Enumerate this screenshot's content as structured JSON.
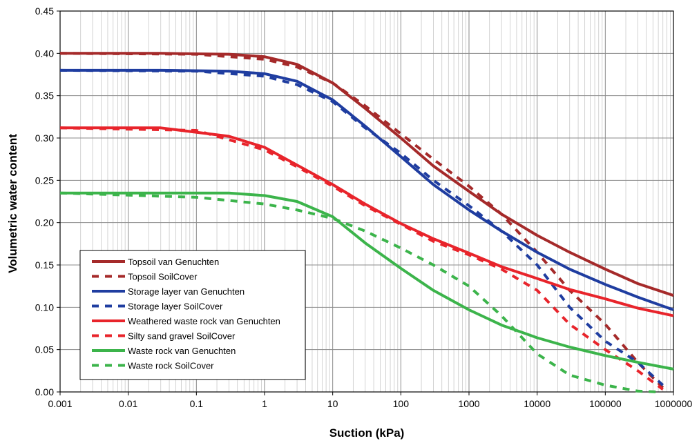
{
  "chart_data": {
    "type": "line",
    "title": "",
    "xlabel": "Suction (kPa)",
    "ylabel": "Volumetric water content",
    "x_scale": "log",
    "xlim": [
      0.001,
      1000000
    ],
    "ylim": [
      0,
      0.45
    ],
    "x_ticks": [
      "0.001",
      "0.01",
      "0.1",
      "1",
      "10",
      "100",
      "1000",
      "10000",
      "100000",
      "1000000"
    ],
    "y_ticks": [
      "0.00",
      "0.05",
      "0.10",
      "0.15",
      "0.20",
      "0.25",
      "0.30",
      "0.35",
      "0.40",
      "0.45"
    ],
    "grid": true,
    "legend_position": "lower-left",
    "series": [
      {
        "name": "Topsoil van Genuchten",
        "color": "#A52A2A",
        "style": "solid",
        "points": [
          [
            0.001,
            0.4
          ],
          [
            0.03,
            0.4
          ],
          [
            0.3,
            0.399
          ],
          [
            1,
            0.396
          ],
          [
            3,
            0.387
          ],
          [
            10,
            0.365
          ],
          [
            30,
            0.335
          ],
          [
            100,
            0.3
          ],
          [
            300,
            0.267
          ],
          [
            1000,
            0.237
          ],
          [
            3000,
            0.21
          ],
          [
            10000,
            0.185
          ],
          [
            30000,
            0.165
          ],
          [
            100000,
            0.145
          ],
          [
            300000,
            0.128
          ],
          [
            1000000,
            0.114
          ]
        ]
      },
      {
        "name": "Topsoil SoilCover",
        "color": "#A52A2A",
        "style": "dash",
        "points": [
          [
            0.001,
            0.4
          ],
          [
            0.1,
            0.399
          ],
          [
            1,
            0.393
          ],
          [
            3,
            0.384
          ],
          [
            10,
            0.365
          ],
          [
            30,
            0.338
          ],
          [
            100,
            0.305
          ],
          [
            300,
            0.275
          ],
          [
            1000,
            0.243
          ],
          [
            3000,
            0.21
          ],
          [
            10000,
            0.165
          ],
          [
            30000,
            0.12
          ],
          [
            100000,
            0.08
          ],
          [
            300000,
            0.035
          ],
          [
            700000,
            0.005
          ]
        ]
      },
      {
        "name": "Storage layer van Genuchten",
        "color": "#1F3DA0",
        "style": "solid",
        "points": [
          [
            0.001,
            0.38
          ],
          [
            0.03,
            0.38
          ],
          [
            0.3,
            0.379
          ],
          [
            1,
            0.376
          ],
          [
            3,
            0.367
          ],
          [
            10,
            0.345
          ],
          [
            30,
            0.314
          ],
          [
            100,
            0.278
          ],
          [
            300,
            0.245
          ],
          [
            1000,
            0.215
          ],
          [
            3000,
            0.19
          ],
          [
            10000,
            0.165
          ],
          [
            30000,
            0.145
          ],
          [
            100000,
            0.127
          ],
          [
            300000,
            0.112
          ],
          [
            1000000,
            0.097
          ]
        ]
      },
      {
        "name": "Storage layer SoilCover",
        "color": "#1F3DA0",
        "style": "dash",
        "points": [
          [
            0.001,
            0.38
          ],
          [
            0.1,
            0.379
          ],
          [
            1,
            0.373
          ],
          [
            3,
            0.363
          ],
          [
            10,
            0.343
          ],
          [
            30,
            0.312
          ],
          [
            100,
            0.282
          ],
          [
            300,
            0.25
          ],
          [
            1000,
            0.22
          ],
          [
            3000,
            0.19
          ],
          [
            10000,
            0.15
          ],
          [
            30000,
            0.1
          ],
          [
            100000,
            0.06
          ],
          [
            300000,
            0.035
          ],
          [
            700000,
            0.008
          ]
        ]
      },
      {
        "name": "Weathered waste rock van Genuchten",
        "color": "#E8242B",
        "style": "solid",
        "points": [
          [
            0.001,
            0.312
          ],
          [
            0.03,
            0.312
          ],
          [
            0.3,
            0.302
          ],
          [
            1,
            0.289
          ],
          [
            3,
            0.268
          ],
          [
            10,
            0.245
          ],
          [
            30,
            0.222
          ],
          [
            100,
            0.199
          ],
          [
            300,
            0.181
          ],
          [
            1000,
            0.164
          ],
          [
            3000,
            0.148
          ],
          [
            10000,
            0.134
          ],
          [
            30000,
            0.121
          ],
          [
            100000,
            0.11
          ],
          [
            300000,
            0.099
          ],
          [
            1000000,
            0.09
          ]
        ]
      },
      {
        "name": "Silty sand gravel SoilCover",
        "color": "#E8242B",
        "style": "dash",
        "points": [
          [
            0.001,
            0.312
          ],
          [
            0.1,
            0.309
          ],
          [
            1,
            0.286
          ],
          [
            3,
            0.266
          ],
          [
            10,
            0.243
          ],
          [
            30,
            0.22
          ],
          [
            100,
            0.198
          ],
          [
            300,
            0.178
          ],
          [
            1000,
            0.162
          ],
          [
            3000,
            0.145
          ],
          [
            10000,
            0.12
          ],
          [
            30000,
            0.08
          ],
          [
            100000,
            0.05
          ],
          [
            300000,
            0.025
          ],
          [
            700000,
            0.003
          ]
        ]
      },
      {
        "name": "Waste rock van Genuchten",
        "color": "#3CB44B",
        "style": "solid",
        "points": [
          [
            0.001,
            0.235
          ],
          [
            0.03,
            0.235
          ],
          [
            0.3,
            0.235
          ],
          [
            1,
            0.232
          ],
          [
            3,
            0.225
          ],
          [
            10,
            0.207
          ],
          [
            30,
            0.176
          ],
          [
            100,
            0.146
          ],
          [
            300,
            0.12
          ],
          [
            1000,
            0.097
          ],
          [
            3000,
            0.079
          ],
          [
            10000,
            0.064
          ],
          [
            30000,
            0.053
          ],
          [
            100000,
            0.043
          ],
          [
            300000,
            0.035
          ],
          [
            1000000,
            0.027
          ]
        ]
      },
      {
        "name": "Waste rock SoilCover",
        "color": "#3CB44B",
        "style": "dash",
        "points": [
          [
            0.001,
            0.235
          ],
          [
            0.1,
            0.23
          ],
          [
            1,
            0.222
          ],
          [
            3,
            0.215
          ],
          [
            10,
            0.205
          ],
          [
            30,
            0.19
          ],
          [
            100,
            0.17
          ],
          [
            300,
            0.15
          ],
          [
            1000,
            0.125
          ],
          [
            3000,
            0.09
          ],
          [
            10000,
            0.045
          ],
          [
            30000,
            0.02
          ],
          [
            100000,
            0.008
          ],
          [
            300000,
            0.001
          ],
          [
            600000,
            0
          ]
        ]
      }
    ]
  }
}
